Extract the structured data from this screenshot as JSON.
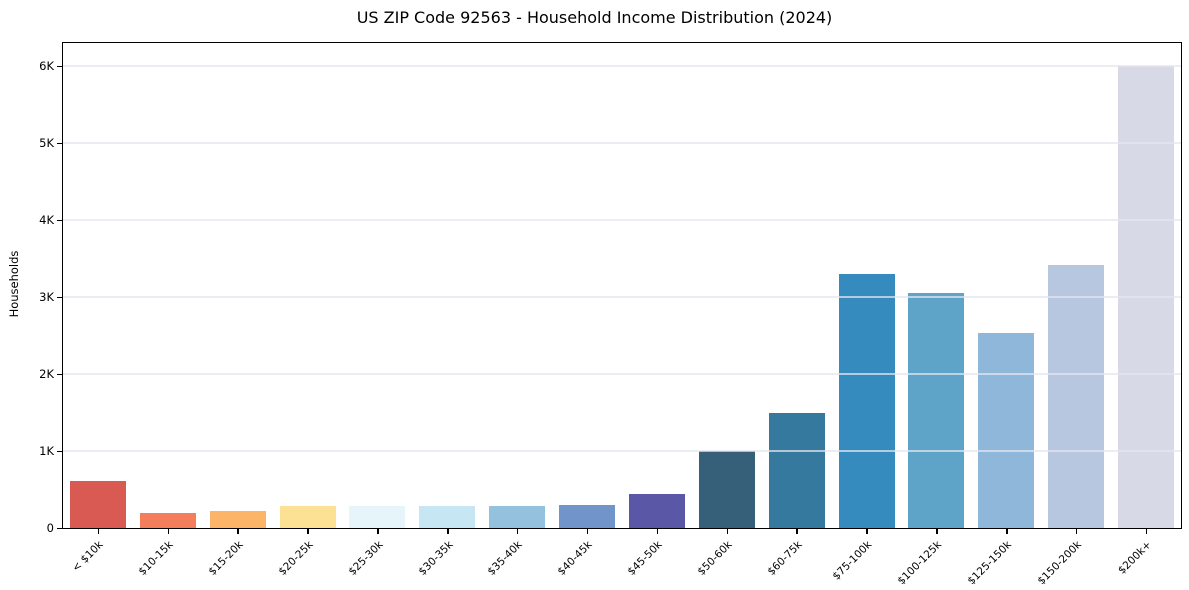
{
  "chart_data": {
    "type": "bar",
    "title": "US ZIP Code 92563 - Household Income Distribution (2024)",
    "xlabel": "",
    "ylabel": "Households",
    "categories": [
      "< $10k",
      "$10-15k",
      "$15-20k",
      "$20-25k",
      "$25-30k",
      "$30-35k",
      "$35-40k",
      "$40-45k",
      "$45-50k",
      "$50-60k",
      "$60-75k",
      "$75-100k",
      "$100-125k",
      "$125-150k",
      "$150-200k",
      "$200k+"
    ],
    "values": [
      610,
      200,
      215,
      280,
      290,
      290,
      290,
      300,
      440,
      1000,
      1490,
      3300,
      3050,
      2530,
      3410,
      6000
    ],
    "bar_colors": [
      "#d85a52",
      "#f47e5b",
      "#fbb468",
      "#fce195",
      "#e6f5f9",
      "#c5e6f2",
      "#93c1de",
      "#7195cb",
      "#5b57a7",
      "#36607a",
      "#36799f",
      "#368bbe",
      "#5ea4c9",
      "#8fb7d9",
      "#b7c7e0",
      "#d7d9e7"
    ],
    "ytick_labels": [
      "0",
      "1K",
      "2K",
      "3K",
      "4K",
      "5K",
      "6K"
    ],
    "ytick_values": [
      0,
      1000,
      2000,
      3000,
      4000,
      5000,
      6000
    ],
    "ylim": [
      0,
      6300
    ],
    "grid": "horizontal",
    "legend_position": "none",
    "axis_color": "#000000",
    "grid_color": "#e4e5ee",
    "background_color": "#ffffff"
  }
}
